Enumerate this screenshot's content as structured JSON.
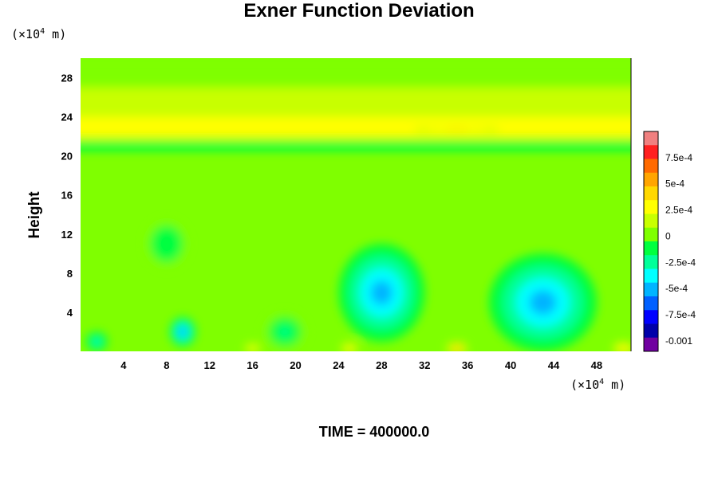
{
  "chart_data": {
    "type": "heatmap",
    "title": "Exner Function Deviation",
    "ylabel": "Height",
    "y_unit": {
      "prefix": "(×10",
      "exp": "4",
      "suffix": " m)"
    },
    "x_unit": {
      "prefix": "(×10",
      "exp": "4",
      "suffix": " m)"
    },
    "footer": "TIME = 400000.0",
    "xlim": [
      0,
      51.2
    ],
    "ylim": [
      0,
      30
    ],
    "x_ticks": [
      "4",
      "8",
      "12",
      "16",
      "20",
      "24",
      "28",
      "32",
      "36",
      "40",
      "44",
      "48"
    ],
    "y_ticks": [
      "4",
      "8",
      "12",
      "16",
      "20",
      "24",
      "28"
    ],
    "colorbar": {
      "range": [
        -0.0011,
        0.001
      ],
      "tick_values": [
        0.00075,
        0.0005,
        0.00025,
        0,
        -0.00025,
        -0.0005,
        -0.00075,
        -0.001
      ],
      "tick_labels": [
        "7.5e-4",
        "5e-4",
        "2.5e-4",
        "0",
        "-2.5e-4",
        "-5e-4",
        "-7.5e-4",
        "-0.001"
      ],
      "colors": [
        "#f08080",
        "#ff2020",
        "#ff6a00",
        "#ffa500",
        "#ffd800",
        "#ffff00",
        "#c8ff00",
        "#7fff00",
        "#00ff40",
        "#00ff9a",
        "#00ffff",
        "#00b4ff",
        "#0060ff",
        "#0000ff",
        "#0000aa",
        "#7000a0"
      ]
    },
    "features": {
      "background_value": 5e-05,
      "layers": [
        {
          "y": 21,
          "width": 0.5,
          "value": -0.00018
        },
        {
          "y": 23,
          "width": 1.2,
          "value": 0.0003
        },
        {
          "y": 25.5,
          "width": 1.5,
          "value": 0.00012
        },
        {
          "y": 28.5,
          "width": 1.5,
          "value": 8e-05
        }
      ],
      "blobs": [
        {
          "x": 28,
          "y": 6,
          "rx": 4,
          "ry": 5,
          "value": -0.00045
        },
        {
          "x": 43,
          "y": 5,
          "rx": 5,
          "ry": 5,
          "value": -0.0005
        },
        {
          "x": 9.5,
          "y": 2,
          "rx": 1.2,
          "ry": 1.5,
          "value": -0.0006
        },
        {
          "x": 1.5,
          "y": 1,
          "rx": 1,
          "ry": 1,
          "value": -0.0004
        },
        {
          "x": 19,
          "y": 2,
          "rx": 2,
          "ry": 2,
          "value": -0.0002
        },
        {
          "x": 8,
          "y": 11,
          "rx": 2,
          "ry": 2.5,
          "value": -0.00018
        },
        {
          "x": 35,
          "y": 0.3,
          "rx": 1,
          "ry": 0.6,
          "value": 0.0005
        },
        {
          "x": 25,
          "y": 0.3,
          "rx": 0.8,
          "ry": 0.5,
          "value": 0.0004
        },
        {
          "x": 50.5,
          "y": 0.3,
          "rx": 1,
          "ry": 0.6,
          "value": 0.0004
        },
        {
          "x": 16,
          "y": 0.3,
          "rx": 0.8,
          "ry": 0.5,
          "value": 0.0003
        },
        {
          "x": 35,
          "y": 22.7,
          "rx": 4,
          "ry": 0.4,
          "value": 0.0004
        }
      ]
    }
  }
}
